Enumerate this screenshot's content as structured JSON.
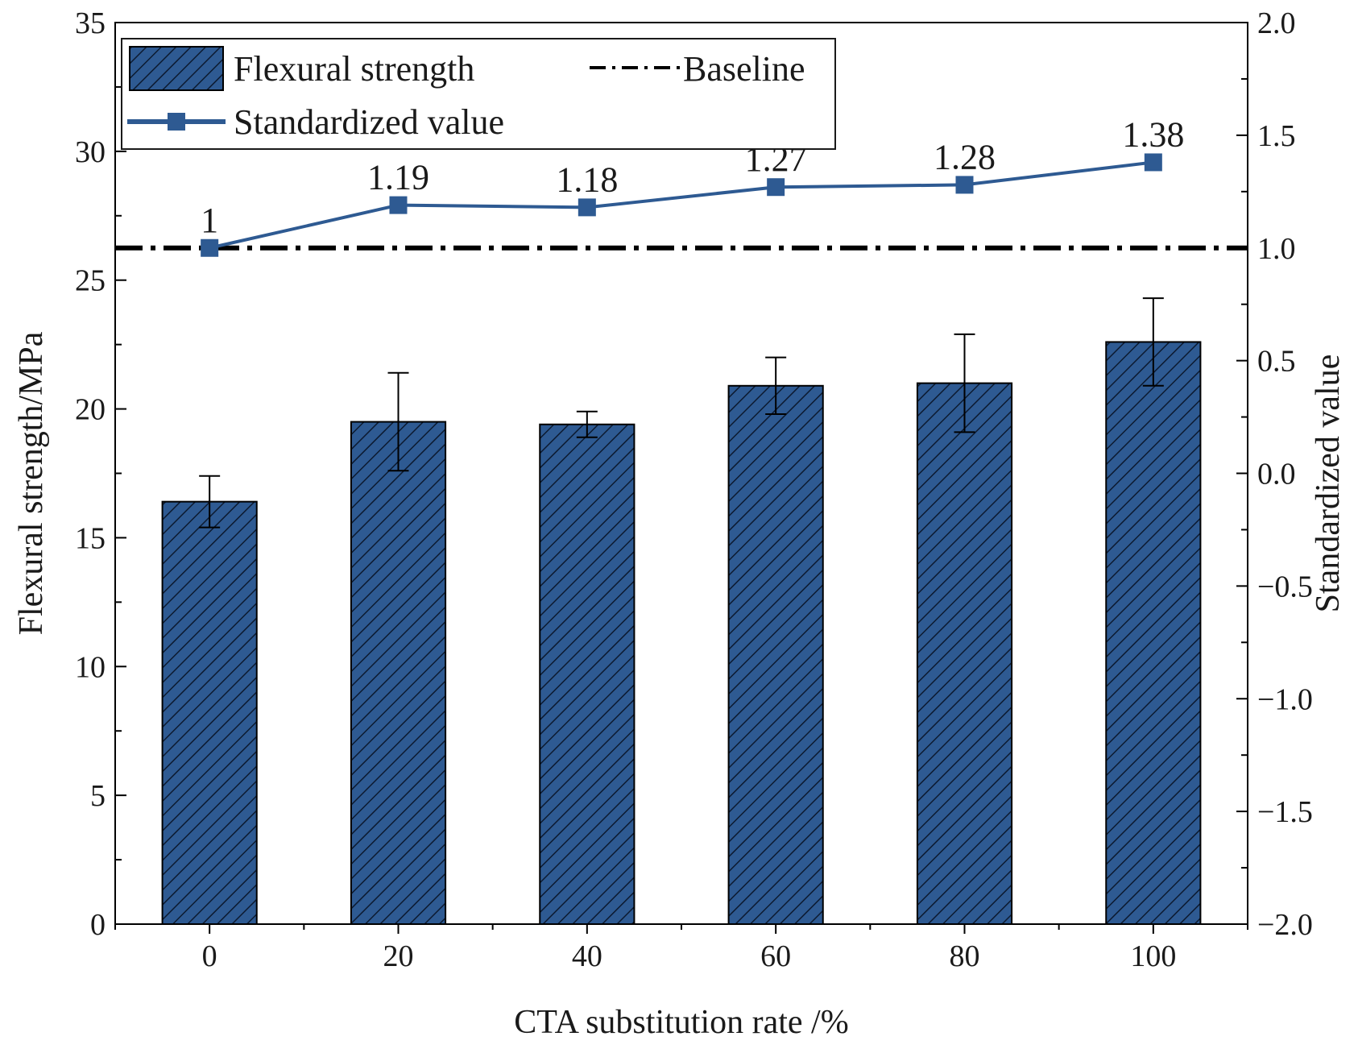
{
  "chart_data": {
    "type": "bar+line",
    "categories": [
      "0",
      "20",
      "40",
      "60",
      "80",
      "100"
    ],
    "series": [
      {
        "name": "Flexural strength",
        "kind": "bar",
        "axis": "left",
        "values": [
          16.4,
          19.5,
          19.4,
          20.9,
          21.0,
          22.6
        ],
        "errors": [
          1.0,
          1.9,
          0.5,
          1.1,
          1.9,
          1.7
        ]
      },
      {
        "name": "Standardized value",
        "kind": "line",
        "axis": "right",
        "values": [
          1.0,
          1.19,
          1.18,
          1.27,
          1.28,
          1.38
        ],
        "labels": [
          "1",
          "1.19",
          "1.18",
          "1.27",
          "1.28",
          "1.38"
        ]
      },
      {
        "name": "Baseline",
        "kind": "hline",
        "axis": "right",
        "value": 1.0
      }
    ],
    "xlabel": "CTA substitution rate /%",
    "ylabel": "Flexural strength/MPa",
    "y2label": "Standardized value",
    "ylim": [
      0,
      35
    ],
    "y2lim": [
      -2.0,
      2.0
    ],
    "yticks": [
      "0",
      "5",
      "10",
      "15",
      "20",
      "25",
      "30",
      "35"
    ],
    "y2ticks": [
      "−2.0",
      "−1.5",
      "−1.0",
      "−0.5",
      "0.0",
      "0.5",
      "1.0",
      "1.5",
      "2.0"
    ],
    "legend": [
      "Flexural strength",
      "Baseline",
      "Standardized value"
    ],
    "legend_position": "top-left",
    "colors": {
      "bar": "#2e5a92",
      "line": "#2e5a92",
      "baseline": "#000000"
    }
  }
}
